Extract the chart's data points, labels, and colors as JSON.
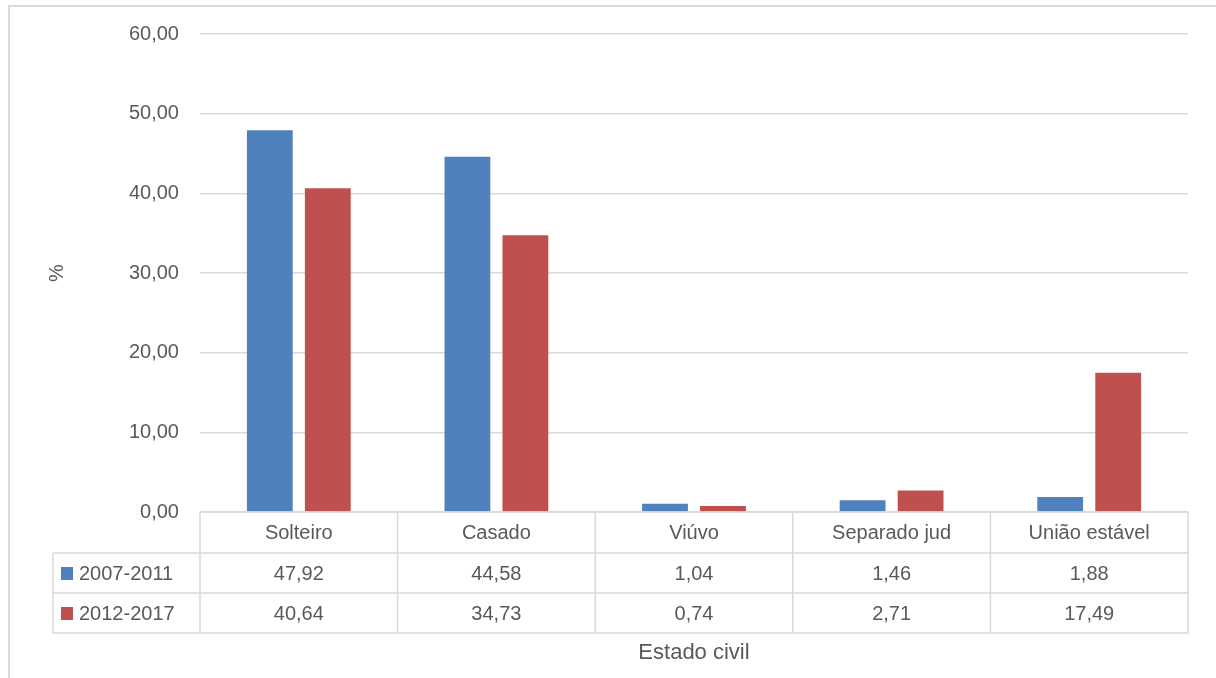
{
  "chart_data": {
    "type": "bar",
    "xlabel": "Estado civil",
    "ylabel": "%",
    "categories": [
      "Solteiro",
      "Casado",
      "Viúvo",
      "Separado jud",
      "União estável"
    ],
    "series": [
      {
        "name": "2007-2011",
        "color": "#4f81bd",
        "values": [
          47.92,
          44.58,
          1.04,
          1.46,
          1.88
        ],
        "value_labels": [
          "47,92",
          "44,58",
          "1,04",
          "1,46",
          "1,88"
        ]
      },
      {
        "name": "2012-2017",
        "color": "#c0504d",
        "values": [
          40.64,
          34.73,
          0.74,
          2.71,
          17.49
        ],
        "value_labels": [
          "40,64",
          "34,73",
          "0,74",
          "2,71",
          "17,49"
        ]
      }
    ],
    "ylim": [
      0,
      60
    ],
    "yticks": [
      {
        "value": 0,
        "label": "0,00"
      },
      {
        "value": 10,
        "label": "10,00"
      },
      {
        "value": 20,
        "label": "20,00"
      },
      {
        "value": 30,
        "label": "30,00"
      },
      {
        "value": 40,
        "label": "40,00"
      },
      {
        "value": 50,
        "label": "50,00"
      },
      {
        "value": 60,
        "label": "60,00"
      }
    ],
    "grid": "y",
    "legend": "bottom"
  }
}
